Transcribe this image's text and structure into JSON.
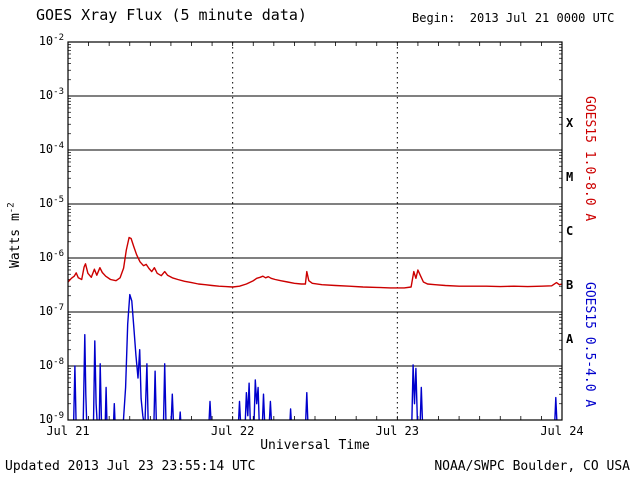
{
  "footer": {
    "updated": "Updated 2013 Jul 23 23:55:14 UTC",
    "credit": "NOAA/SWPC Boulder, CO USA"
  },
  "chart_data": {
    "type": "line",
    "title": "GOES Xray Flux (5 minute data)",
    "begin_label": "Begin:  2013 Jul 21 0000 UTC",
    "xlabel": "Universal Time",
    "ylabel": {
      "text": "Watts m",
      "sup": "-2"
    },
    "x_range_hours": [
      0,
      72
    ],
    "x_ticks": [
      {
        "hour": 0,
        "label": "Jul 21"
      },
      {
        "hour": 24,
        "label": "Jul 22"
      },
      {
        "hour": 48,
        "label": "Jul 23"
      },
      {
        "hour": 72,
        "label": "Jul 24"
      }
    ],
    "x_minor_tick_hours": 3,
    "y_exponent_range": [
      -9,
      -2
    ],
    "y_tick_base": "10",
    "y_tick_exponents": [
      -2,
      -3,
      -4,
      -5,
      -6,
      -7,
      -8,
      -9
    ],
    "grid": {
      "horizontal": "solid-per-decade",
      "vertical": "dotted-at-day-boundaries",
      "legend_position": "right-rotated"
    },
    "flare_class_labels": [
      {
        "label": "X",
        "exponent_mid": -3.5
      },
      {
        "label": "M",
        "exponent_mid": -4.5
      },
      {
        "label": "C",
        "exponent_mid": -5.5
      },
      {
        "label": "B",
        "exponent_mid": -6.5
      },
      {
        "label": "A",
        "exponent_mid": -7.5
      }
    ],
    "series": [
      {
        "name": "GOES15 1.0-8.0 A",
        "color": "#cc0000",
        "points": [
          [
            0,
            3.6e-07
          ],
          [
            0.5,
            4.2e-07
          ],
          [
            0.9,
            4.6e-07
          ],
          [
            1.2,
            5.3e-07
          ],
          [
            1.5,
            4.3e-07
          ],
          [
            2.0,
            4e-07
          ],
          [
            2.35,
            6.8e-07
          ],
          [
            2.55,
            7.8e-07
          ],
          [
            2.9,
            5.2e-07
          ],
          [
            3.4,
            4.4e-07
          ],
          [
            3.85,
            6.2e-07
          ],
          [
            4.2,
            4.8e-07
          ],
          [
            4.65,
            6.6e-07
          ],
          [
            5.0,
            5.4e-07
          ],
          [
            5.5,
            4.6e-07
          ],
          [
            6.2,
            4e-07
          ],
          [
            7.0,
            3.8e-07
          ],
          [
            7.6,
            4.3e-07
          ],
          [
            8.1,
            6.5e-07
          ],
          [
            8.5,
            1.4e-06
          ],
          [
            8.9,
            2.4e-06
          ],
          [
            9.2,
            2.3e-06
          ],
          [
            9.6,
            1.6e-06
          ],
          [
            10.0,
            1.15e-06
          ],
          [
            10.5,
            8.5e-07
          ],
          [
            11.0,
            7.2e-07
          ],
          [
            11.4,
            7.6e-07
          ],
          [
            11.8,
            6.4e-07
          ],
          [
            12.2,
            5.6e-07
          ],
          [
            12.6,
            6.6e-07
          ],
          [
            13.0,
            5.2e-07
          ],
          [
            13.6,
            4.7e-07
          ],
          [
            14.1,
            5.6e-07
          ],
          [
            14.5,
            4.8e-07
          ],
          [
            15.2,
            4.3e-07
          ],
          [
            16,
            4e-07
          ],
          [
            17,
            3.7e-07
          ],
          [
            18,
            3.5e-07
          ],
          [
            19,
            3.3e-07
          ],
          [
            20,
            3.2e-07
          ],
          [
            21,
            3.1e-07
          ],
          [
            22,
            3e-07
          ],
          [
            23,
            2.95e-07
          ],
          [
            24,
            2.9e-07
          ],
          [
            25,
            3e-07
          ],
          [
            26,
            3.3e-07
          ],
          [
            27,
            3.8e-07
          ],
          [
            27.5,
            4.2e-07
          ],
          [
            28,
            4.4e-07
          ],
          [
            28.4,
            4.6e-07
          ],
          [
            28.8,
            4.3e-07
          ],
          [
            29.2,
            4.5e-07
          ],
          [
            29.6,
            4.2e-07
          ],
          [
            30.2,
            4e-07
          ],
          [
            31,
            3.8e-07
          ],
          [
            32,
            3.6e-07
          ],
          [
            33,
            3.4e-07
          ],
          [
            34,
            3.3e-07
          ],
          [
            34.6,
            3.3e-07
          ],
          [
            34.8,
            5.6e-07
          ],
          [
            35.1,
            3.8e-07
          ],
          [
            35.6,
            3.4e-07
          ],
          [
            37,
            3.2e-07
          ],
          [
            39,
            3.1e-07
          ],
          [
            41,
            3e-07
          ],
          [
            43,
            2.9e-07
          ],
          [
            45,
            2.85e-07
          ],
          [
            47,
            2.8e-07
          ],
          [
            49,
            2.8e-07
          ],
          [
            50.0,
            2.9e-07
          ],
          [
            50.4,
            5.6e-07
          ],
          [
            50.7,
            4.2e-07
          ],
          [
            51.0,
            6e-07
          ],
          [
            51.4,
            4.6e-07
          ],
          [
            51.8,
            3.6e-07
          ],
          [
            52.4,
            3.3e-07
          ],
          [
            53.5,
            3.2e-07
          ],
          [
            55,
            3.1e-07
          ],
          [
            57,
            3e-07
          ],
          [
            59,
            3e-07
          ],
          [
            61,
            3e-07
          ],
          [
            63,
            2.95e-07
          ],
          [
            65,
            3e-07
          ],
          [
            67,
            2.95e-07
          ],
          [
            69,
            3e-07
          ],
          [
            70.5,
            3.05e-07
          ],
          [
            71.2,
            3.5e-07
          ],
          [
            71.6,
            3.2e-07
          ],
          [
            72,
            3.3e-07
          ]
        ]
      },
      {
        "name": "GOES15 0.5-4.0 A",
        "color": "#0000cc",
        "points": [
          [
            0,
            7e-10
          ],
          [
            0.8,
            7e-10
          ],
          [
            1.0,
            1e-08
          ],
          [
            1.2,
            7e-10
          ],
          [
            2.2,
            7e-10
          ],
          [
            2.45,
            3.8e-08
          ],
          [
            2.6,
            3e-09
          ],
          [
            2.75,
            7e-10
          ],
          [
            3.7,
            7e-10
          ],
          [
            3.9,
            2.9e-08
          ],
          [
            4.1,
            2e-09
          ],
          [
            4.3,
            7e-10
          ],
          [
            4.55,
            7e-10
          ],
          [
            4.7,
            1.1e-08
          ],
          [
            4.9,
            7e-10
          ],
          [
            5.4,
            7e-10
          ],
          [
            5.55,
            4e-09
          ],
          [
            5.7,
            7e-10
          ],
          [
            6.6,
            7e-10
          ],
          [
            6.75,
            2e-09
          ],
          [
            6.9,
            7e-10
          ],
          [
            8.0,
            7e-10
          ],
          [
            8.4,
            4e-09
          ],
          [
            8.7,
            6e-08
          ],
          [
            9.0,
            2.1e-07
          ],
          [
            9.3,
            1.6e-07
          ],
          [
            9.6,
            5e-08
          ],
          [
            9.9,
            1.6e-08
          ],
          [
            10.2,
            6e-09
          ],
          [
            10.45,
            2e-08
          ],
          [
            10.65,
            2.5e-09
          ],
          [
            10.9,
            1.2e-09
          ],
          [
            11.2,
            7e-10
          ],
          [
            11.5,
            1.1e-08
          ],
          [
            11.7,
            7e-10
          ],
          [
            12.5,
            7e-10
          ],
          [
            12.7,
            8e-09
          ],
          [
            12.9,
            7e-10
          ],
          [
            13.9,
            7e-10
          ],
          [
            14.1,
            1.1e-08
          ],
          [
            14.3,
            7e-10
          ],
          [
            15.0,
            7e-10
          ],
          [
            15.2,
            3e-09
          ],
          [
            15.4,
            7e-10
          ],
          [
            16.2,
            7e-10
          ],
          [
            16.35,
            1.4e-09
          ],
          [
            16.5,
            7e-10
          ],
          [
            20.5,
            7e-10
          ],
          [
            20.7,
            2.2e-09
          ],
          [
            20.9,
            7e-10
          ],
          [
            24.8,
            7e-10
          ],
          [
            25.0,
            2.2e-09
          ],
          [
            25.2,
            7e-10
          ],
          [
            25.8,
            7e-10
          ],
          [
            26.0,
            3.2e-09
          ],
          [
            26.2,
            1.2e-09
          ],
          [
            26.4,
            4.8e-09
          ],
          [
            26.6,
            7e-10
          ],
          [
            27.1,
            7e-10
          ],
          [
            27.3,
            5.5e-09
          ],
          [
            27.5,
            2e-09
          ],
          [
            27.7,
            4e-09
          ],
          [
            27.9,
            7e-10
          ],
          [
            28.3,
            7e-10
          ],
          [
            28.5,
            3e-09
          ],
          [
            28.7,
            7e-10
          ],
          [
            29.3,
            7e-10
          ],
          [
            29.5,
            2.2e-09
          ],
          [
            29.7,
            7e-10
          ],
          [
            32.3,
            7e-10
          ],
          [
            32.45,
            1.6e-09
          ],
          [
            32.6,
            7e-10
          ],
          [
            34.6,
            7e-10
          ],
          [
            34.8,
            3.2e-09
          ],
          [
            35.0,
            7e-10
          ],
          [
            50.1,
            7e-10
          ],
          [
            50.3,
            1.05e-08
          ],
          [
            50.5,
            2e-09
          ],
          [
            50.7,
            9e-09
          ],
          [
            50.95,
            7e-10
          ],
          [
            51.3,
            7e-10
          ],
          [
            51.5,
            4e-09
          ],
          [
            51.7,
            7e-10
          ],
          [
            70.9,
            7e-10
          ],
          [
            71.1,
            2.6e-09
          ],
          [
            71.3,
            7e-10
          ],
          [
            72,
            7e-10
          ]
        ]
      }
    ]
  }
}
